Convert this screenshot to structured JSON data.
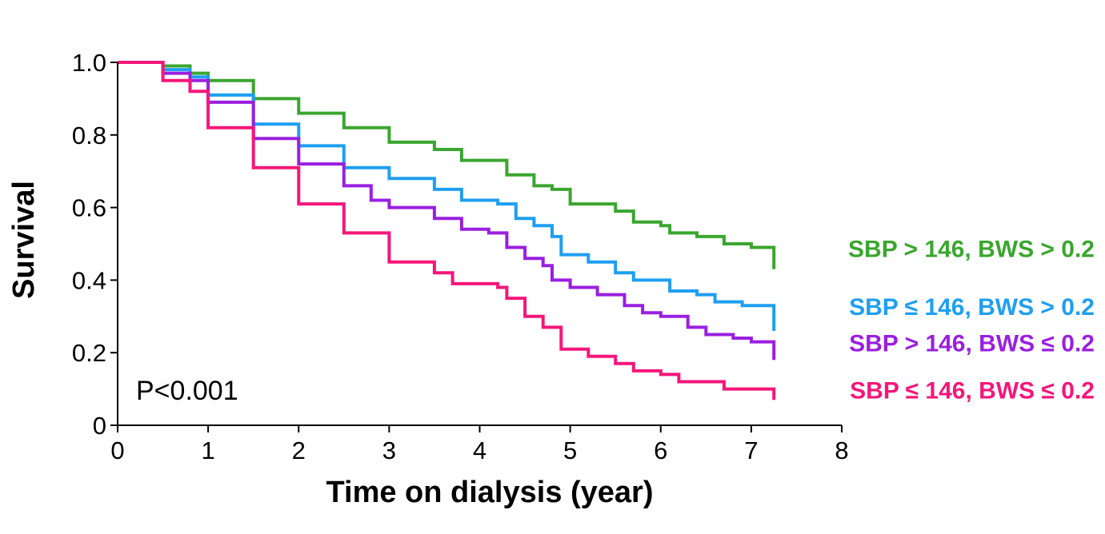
{
  "chart_data": {
    "type": "line",
    "step": true,
    "xlabel": "Time on dialysis (year)",
    "ylabel": "Survival",
    "xlim": [
      0,
      8
    ],
    "ylim": [
      0,
      1.0
    ],
    "x_ticks": [
      0,
      1,
      2,
      3,
      4,
      5,
      6,
      7,
      8
    ],
    "x_tick_labels": [
      "0",
      "1",
      "2",
      "3",
      "4",
      "5",
      "6",
      "7",
      "8"
    ],
    "y_ticks": [
      0,
      0.2,
      0.4,
      0.6,
      0.8,
      1.0
    ],
    "y_tick_labels": [
      "0",
      "0.2",
      "0.4",
      "0.6",
      "0.8",
      "1.0"
    ],
    "grid": false,
    "legend_placement": "right, at line ends",
    "annotations": [
      "P<0.001"
    ],
    "series": [
      {
        "name": "SBP > 146, BWS > 0.2",
        "color": "#3aa62f",
        "points": [
          [
            0,
            1.0
          ],
          [
            0.3,
            1.0
          ],
          [
            0.5,
            0.99
          ],
          [
            0.8,
            0.97
          ],
          [
            1.0,
            0.95
          ],
          [
            1.5,
            0.9
          ],
          [
            2.0,
            0.86
          ],
          [
            2.5,
            0.82
          ],
          [
            3.0,
            0.78
          ],
          [
            3.5,
            0.76
          ],
          [
            3.8,
            0.73
          ],
          [
            4.1,
            0.73
          ],
          [
            4.3,
            0.69
          ],
          [
            4.6,
            0.66
          ],
          [
            4.8,
            0.65
          ],
          [
            5.0,
            0.61
          ],
          [
            5.5,
            0.59
          ],
          [
            5.7,
            0.56
          ],
          [
            6.0,
            0.55
          ],
          [
            6.1,
            0.53
          ],
          [
            6.4,
            0.52
          ],
          [
            6.7,
            0.5
          ],
          [
            7.0,
            0.49
          ],
          [
            7.25,
            0.49
          ]
        ],
        "end_drop": 0.43
      },
      {
        "name": "SBP ≤ 146, BWS > 0.2",
        "color": "#1e9ff2",
        "points": [
          [
            0,
            1.0
          ],
          [
            0.3,
            1.0
          ],
          [
            0.5,
            0.98
          ],
          [
            0.8,
            0.96
          ],
          [
            1.0,
            0.91
          ],
          [
            1.5,
            0.83
          ],
          [
            2.0,
            0.77
          ],
          [
            2.5,
            0.71
          ],
          [
            3.0,
            0.68
          ],
          [
            3.5,
            0.65
          ],
          [
            3.8,
            0.62
          ],
          [
            4.2,
            0.61
          ],
          [
            4.4,
            0.57
          ],
          [
            4.6,
            0.55
          ],
          [
            4.8,
            0.52
          ],
          [
            4.9,
            0.47
          ],
          [
            5.2,
            0.45
          ],
          [
            5.5,
            0.42
          ],
          [
            5.7,
            0.4
          ],
          [
            6.0,
            0.4
          ],
          [
            6.1,
            0.37
          ],
          [
            6.4,
            0.36
          ],
          [
            6.6,
            0.34
          ],
          [
            6.9,
            0.33
          ],
          [
            7.25,
            0.33
          ]
        ],
        "end_drop": 0.26
      },
      {
        "name": "SBP > 146, BWS ≤ 0.2",
        "color": "#9a1fe0",
        "points": [
          [
            0,
            1.0
          ],
          [
            0.3,
            1.0
          ],
          [
            0.5,
            0.97
          ],
          [
            0.8,
            0.95
          ],
          [
            1.0,
            0.89
          ],
          [
            1.5,
            0.79
          ],
          [
            2.0,
            0.72
          ],
          [
            2.5,
            0.66
          ],
          [
            2.8,
            0.62
          ],
          [
            3.0,
            0.6
          ],
          [
            3.5,
            0.57
          ],
          [
            3.8,
            0.54
          ],
          [
            4.1,
            0.53
          ],
          [
            4.3,
            0.49
          ],
          [
            4.5,
            0.46
          ],
          [
            4.7,
            0.44
          ],
          [
            4.8,
            0.4
          ],
          [
            5.0,
            0.38
          ],
          [
            5.3,
            0.36
          ],
          [
            5.6,
            0.33
          ],
          [
            5.8,
            0.31
          ],
          [
            6.0,
            0.3
          ],
          [
            6.3,
            0.27
          ],
          [
            6.5,
            0.25
          ],
          [
            6.8,
            0.24
          ],
          [
            7.0,
            0.23
          ],
          [
            7.25,
            0.23
          ]
        ],
        "end_drop": 0.18
      },
      {
        "name": "SBP ≤ 146, BWS ≤ 0.2",
        "color": "#f5167a",
        "points": [
          [
            0,
            1.0
          ],
          [
            0.3,
            1.0
          ],
          [
            0.5,
            0.95
          ],
          [
            0.8,
            0.92
          ],
          [
            1.0,
            0.82
          ],
          [
            1.5,
            0.71
          ],
          [
            2.0,
            0.61
          ],
          [
            2.5,
            0.53
          ],
          [
            3.0,
            0.45
          ],
          [
            3.5,
            0.42
          ],
          [
            3.7,
            0.39
          ],
          [
            4.2,
            0.38
          ],
          [
            4.3,
            0.35
          ],
          [
            4.5,
            0.3
          ],
          [
            4.7,
            0.27
          ],
          [
            4.9,
            0.21
          ],
          [
            5.2,
            0.19
          ],
          [
            5.5,
            0.17
          ],
          [
            5.7,
            0.15
          ],
          [
            6.0,
            0.14
          ],
          [
            6.2,
            0.12
          ],
          [
            6.4,
            0.12
          ],
          [
            6.7,
            0.1
          ],
          [
            7.0,
            0.1
          ],
          [
            7.25,
            0.1
          ]
        ],
        "end_drop": 0.07
      }
    ]
  }
}
